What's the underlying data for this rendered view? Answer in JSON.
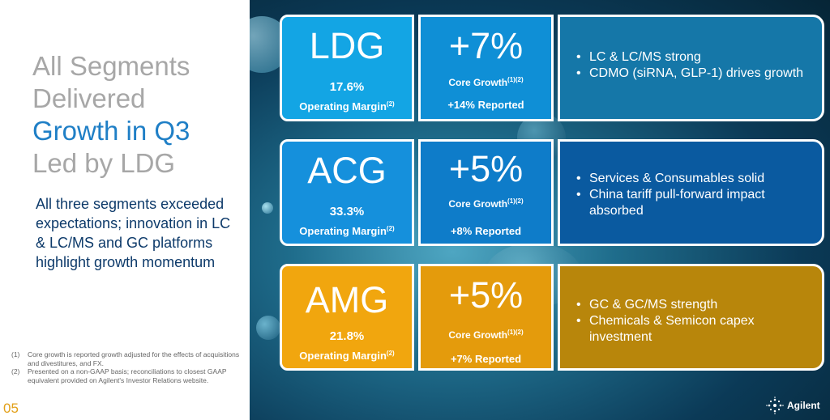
{
  "headline": {
    "line1": "All Segments",
    "line2": "Delivered",
    "line3": "Growth in Q3",
    "line4": "Led by LDG"
  },
  "subtext": "All three segments exceeded expectations; innovation in LC & LC/MS and GC platforms highlight growth momentum",
  "footnotes": [
    {
      "num": "(1)",
      "text": "Core growth is reported growth adjusted for the effects of acquisitions and divestitures, and FX."
    },
    {
      "num": "(2)",
      "text": "Presented on a non-GAAP basis; reconciliations to closest GAAP equivalent provided on Agilent's Investor Relations website."
    }
  ],
  "page_number": "05",
  "segments": [
    {
      "name": "LDG",
      "margin_value": "17.6%",
      "margin_label": "Operating Margin",
      "margin_sup": "(2)",
      "growth_pct": "+7%",
      "growth_label": "Core Growth",
      "growth_sup": "(1)(2)",
      "reported": "+14% Reported",
      "bullets": [
        "LC & LC/MS strong",
        "CDMO (siRNA, GLP-1) drives growth"
      ]
    },
    {
      "name": "ACG",
      "margin_value": "33.3%",
      "margin_label": "Operating Margin",
      "margin_sup": "(2)",
      "growth_pct": "+5%",
      "growth_label": "Core Growth",
      "growth_sup": "(1)(2)",
      "reported": "+8% Reported",
      "bullets": [
        "Services & Consumables solid",
        "China tariff pull-forward impact absorbed"
      ]
    },
    {
      "name": "AMG",
      "margin_value": "21.8%",
      "margin_label": "Operating Margin",
      "margin_sup": "(2)",
      "growth_pct": "+5%",
      "growth_label": "Core Growth",
      "growth_sup": "(1)(2)",
      "reported": "+7% Reported",
      "bullets": [
        "GC & GC/MS strength",
        "Chemicals & Semicon capex investment"
      ]
    }
  ],
  "logo": {
    "name": "Agilent",
    "icon": "agilent-spark-icon"
  },
  "colors": {
    "ldg_name": "#13a5e4",
    "ldg_growth": "#0f8fd6",
    "ldg_bullets": "#1577a8",
    "acg_name": "#1590dc",
    "acg_growth": "#0e7cc9",
    "acg_bullets": "#0a5aa0",
    "amg_name": "#f1a60e",
    "amg_growth": "#e49b0c",
    "amg_bullets": "#b8860b",
    "headline_gray": "#a7a7a7",
    "headline_blue": "#1f7fc6",
    "page_number": "#e2a019"
  }
}
